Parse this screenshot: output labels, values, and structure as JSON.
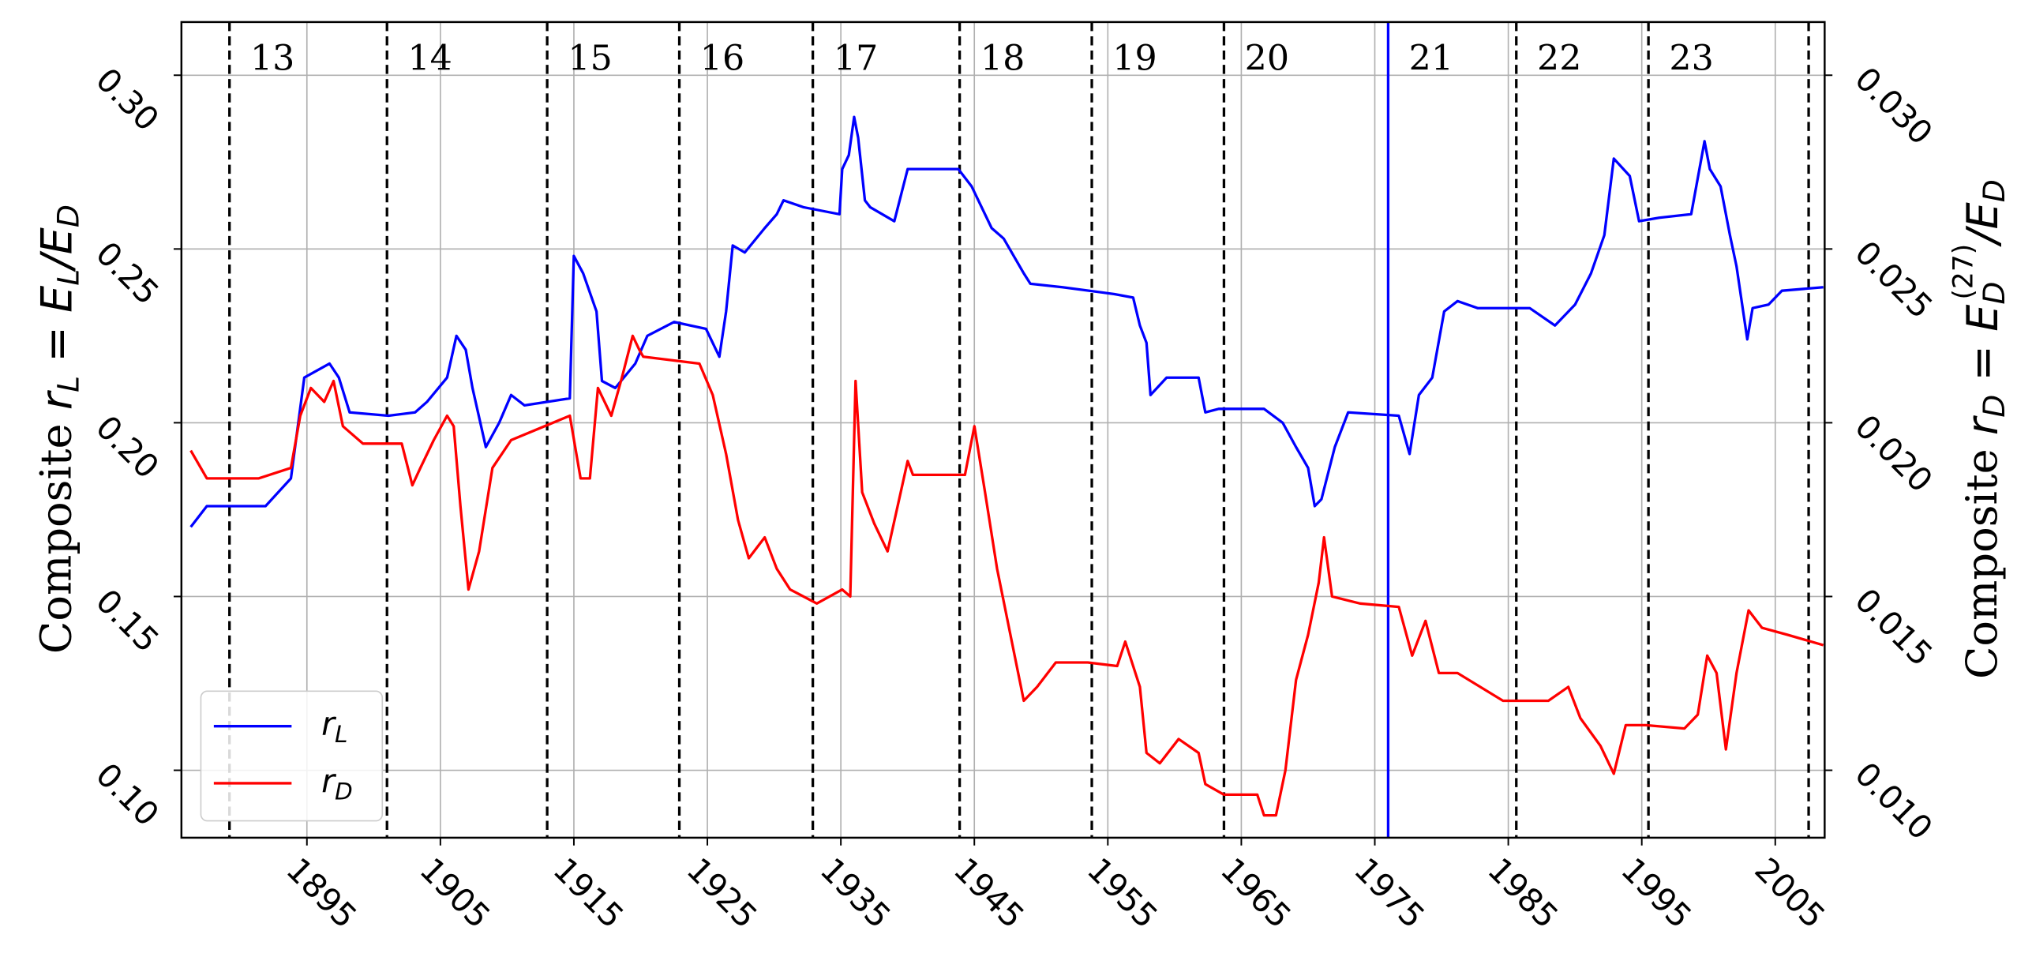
{
  "chart_data": {
    "type": "line",
    "xlim": [
      1885.6,
      2008.7
    ],
    "ylim": [
      0.0806,
      0.3153
    ],
    "y2lim": [
      0.00806,
      0.03153
    ],
    "xticks": [
      1895,
      1905,
      1915,
      1925,
      1935,
      1945,
      1955,
      1965,
      1975,
      1985,
      1995,
      2005
    ],
    "yticks": [
      {
        "value": 0.1,
        "label": "0.10"
      },
      0.15,
      {
        "value": 0.2,
        "label": "0.20"
      },
      0.25,
      {
        "value": 0.3,
        "label": "0.30"
      }
    ],
    "y2ticks": [
      {
        "value": 0.01,
        "label": "0.010"
      },
      {
        "value": 0.015,
        "label": "0.015"
      },
      {
        "value": 0.02,
        "label": "0.020"
      },
      {
        "value": 0.025,
        "label": "0.025"
      },
      {
        "value": 0.03,
        "label": "0.030"
      }
    ],
    "grid": true,
    "legend": "lower left",
    "ylabel": [
      "Composite ",
      "r",
      "L",
      " = ",
      "E",
      "L",
      "/",
      "E",
      "D"
    ],
    "y2label": [
      "Composite ",
      "r",
      "D",
      " = ",
      "E",
      "D",
      "(27)",
      "/",
      "E",
      "D"
    ],
    "cycle_boundaries": [
      1889.2,
      1901.0,
      1913.0,
      1922.9,
      1932.9,
      1943.9,
      1953.8,
      1963.7,
      1985.6,
      1995.5,
      2007.5
    ],
    "marker_line": {
      "x": 1976.0,
      "color": "#0000ff"
    },
    "cycle_labels": [
      "13",
      "14",
      "15",
      "16",
      "17",
      "18",
      "19",
      "20",
      "21",
      "22",
      "23"
    ],
    "series": [
      {
        "name": "r",
        "name_sub": "L",
        "color": "#0000ff",
        "axis": "y",
        "x": [
          1886.3,
          1887.5,
          1891.9,
          1893.8,
          1894.8,
          1896.7,
          1897.4,
          1898.2,
          1901.1,
          1903.1,
          1904.0,
          1905.5,
          1906.2,
          1906.9,
          1907.4,
          1908.4,
          1909.4,
          1910.3,
          1911.3,
          1914.7,
          1915.0,
          1915.7,
          1916.7,
          1917.1,
          1918.1,
          1919.6,
          1920.5,
          1922.5,
          1924.9,
          1925.9,
          1926.4,
          1926.9,
          1927.8,
          1929.3,
          1930.2,
          1930.7,
          1932.2,
          1934.9,
          1935.1,
          1935.6,
          1936.0,
          1936.3,
          1936.8,
          1937.2,
          1939.0,
          1940.0,
          1943.8,
          1944.8,
          1946.3,
          1947.2,
          1948.7,
          1949.2,
          1951.6,
          1955.5,
          1956.9,
          1957.4,
          1957.9,
          1958.2,
          1959.4,
          1961.8,
          1962.3,
          1963.3,
          1966.7,
          1968.1,
          1969.1,
          1970.0,
          1970.5,
          1971.0,
          1972.0,
          1973.0,
          1976.8,
          1977.6,
          1978.3,
          1979.3,
          1980.2,
          1981.2,
          1982.7,
          1986.6,
          1988.5,
          1990.0,
          1991.2,
          1992.2,
          1992.9,
          1994.1,
          1994.8,
          1996.3,
          1998.7,
          1999.7,
          2000.1,
          2000.9,
          2001.6,
          2002.1,
          2002.9,
          2003.3,
          2004.5,
          2005.5,
          2008.6
        ],
        "values": [
          0.17,
          0.176,
          0.176,
          0.184,
          0.213,
          0.217,
          0.213,
          0.203,
          0.202,
          0.203,
          0.206,
          0.213,
          0.225,
          0.221,
          0.21,
          0.193,
          0.2,
          0.208,
          0.205,
          0.207,
          0.248,
          0.243,
          0.232,
          0.212,
          0.21,
          0.217,
          0.225,
          0.229,
          0.227,
          0.219,
          0.232,
          0.251,
          0.249,
          0.256,
          0.26,
          0.264,
          0.262,
          0.26,
          0.273,
          0.277,
          0.288,
          0.282,
          0.264,
          0.262,
          0.258,
          0.273,
          0.273,
          0.268,
          0.256,
          0.253,
          0.243,
          0.24,
          0.239,
          0.237,
          0.236,
          0.228,
          0.223,
          0.208,
          0.213,
          0.213,
          0.203,
          0.204,
          0.204,
          0.2,
          0.193,
          0.187,
          0.176,
          0.178,
          0.193,
          0.203,
          0.202,
          0.191,
          0.208,
          0.213,
          0.232,
          0.235,
          0.233,
          0.233,
          0.228,
          0.234,
          0.243,
          0.254,
          0.276,
          0.271,
          0.258,
          0.259,
          0.26,
          0.281,
          0.273,
          0.268,
          0.254,
          0.245,
          0.224,
          0.233,
          0.234,
          0.238,
          0.239
        ]
      },
      {
        "name": "r",
        "name_sub": "D",
        "color": "#ff0000",
        "axis": "y2",
        "x": [
          1886.3,
          1887.5,
          1891.4,
          1893.8,
          1894.5,
          1895.3,
          1896.3,
          1897.0,
          1897.7,
          1899.2,
          1902.1,
          1902.9,
          1903.5,
          1904.5,
          1905.5,
          1906.0,
          1906.5,
          1907.1,
          1907.9,
          1908.9,
          1910.3,
          1912.8,
          1914.7,
          1915.5,
          1916.2,
          1916.8,
          1917.8,
          1918.6,
          1919.4,
          1919.9,
          1920.2,
          1924.4,
          1925.4,
          1926.4,
          1927.3,
          1928.1,
          1929.3,
          1930.2,
          1931.2,
          1933.2,
          1935.1,
          1935.7,
          1936.1,
          1936.6,
          1937.5,
          1938.5,
          1940.0,
          1940.4,
          1944.3,
          1945.0,
          1945.8,
          1946.7,
          1947.7,
          1948.7,
          1949.7,
          1951.1,
          1953.5,
          1955.7,
          1956.3,
          1957.4,
          1957.9,
          1958.9,
          1960.3,
          1961.8,
          1962.3,
          1963.7,
          1966.2,
          1966.7,
          1967.6,
          1968.3,
          1969.1,
          1970.0,
          1970.8,
          1971.2,
          1971.8,
          1973.9,
          1976.8,
          1977.8,
          1978.8,
          1979.8,
          1981.2,
          1984.6,
          1988.0,
          1989.5,
          1990.4,
          1991.9,
          1992.9,
          1993.8,
          1995.3,
          1998.2,
          1999.2,
          1999.9,
          2000.6,
          2001.3,
          2002.1,
          2003.0,
          2004.0,
          2005.9,
          2008.6
        ],
        "values": [
          0.0192,
          0.0184,
          0.0184,
          0.0187,
          0.0202,
          0.021,
          0.0206,
          0.0212,
          0.0199,
          0.0194,
          0.0194,
          0.0182,
          0.0187,
          0.0195,
          0.0202,
          0.0199,
          0.0176,
          0.0152,
          0.0163,
          0.0187,
          0.0195,
          0.0199,
          0.0202,
          0.0184,
          0.0184,
          0.021,
          0.0202,
          0.0213,
          0.0225,
          0.0221,
          0.0219,
          0.0217,
          0.0208,
          0.0191,
          0.0172,
          0.0161,
          0.0167,
          0.0158,
          0.0152,
          0.0148,
          0.0152,
          0.015,
          0.0212,
          0.018,
          0.0171,
          0.0163,
          0.0189,
          0.0185,
          0.0185,
          0.0199,
          0.018,
          0.0158,
          0.0139,
          0.012,
          0.0124,
          0.0131,
          0.0131,
          0.013,
          0.0137,
          0.0124,
          0.0105,
          0.0102,
          0.0109,
          0.0105,
          0.0096,
          0.0093,
          0.0093,
          0.0087,
          0.0087,
          0.01,
          0.0126,
          0.0139,
          0.0154,
          0.0167,
          0.015,
          0.0148,
          0.0147,
          0.0133,
          0.0143,
          0.0128,
          0.0128,
          0.012,
          0.012,
          0.0124,
          0.0115,
          0.0107,
          0.0099,
          0.0113,
          0.0113,
          0.0112,
          0.0116,
          0.0133,
          0.0128,
          0.0106,
          0.0128,
          0.0146,
          0.0141,
          0.0139,
          0.0136
        ]
      }
    ]
  }
}
